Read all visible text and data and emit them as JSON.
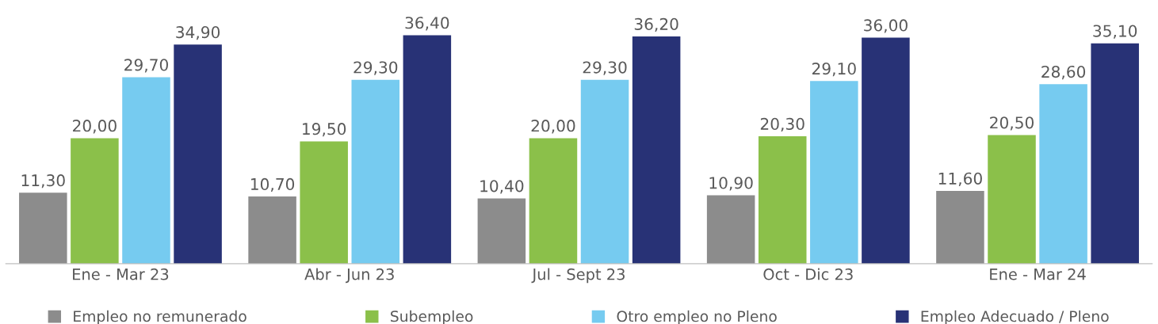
{
  "chart_data": {
    "type": "bar",
    "categories": [
      "Ene - Mar 23",
      "Abr - Jun 23",
      "Jul - Sept 23",
      "Oct - Dic 23",
      "Ene - Mar 24"
    ],
    "series": [
      {
        "name": "Empleo no remunerado",
        "color": "#8c8c8c",
        "values": [
          11.3,
          10.7,
          10.4,
          10.9,
          11.6
        ],
        "value_labels": [
          "11,30",
          "10,70",
          "10,40",
          "10,90",
          "11,60"
        ]
      },
      {
        "name": "Subempleo",
        "color": "#8bc04a",
        "values": [
          20.0,
          19.5,
          20.0,
          20.3,
          20.5
        ],
        "value_labels": [
          "20,00",
          "19,50",
          "20,00",
          "20,30",
          "20,50"
        ]
      },
      {
        "name": "Otro empleo no Pleno",
        "color": "#76cbf0",
        "values": [
          29.7,
          29.3,
          29.3,
          29.1,
          28.6
        ],
        "value_labels": [
          "29,70",
          "29,30",
          "29,30",
          "29,10",
          "28,60"
        ]
      },
      {
        "name": "Empleo Adecuado / Pleno",
        "color": "#283276",
        "values": [
          34.9,
          36.4,
          36.2,
          36.0,
          35.1
        ],
        "value_labels": [
          "34,90",
          "36,40",
          "36,20",
          "36,00",
          "35,10"
        ]
      }
    ],
    "legend": "bottom",
    "grid": false
  }
}
